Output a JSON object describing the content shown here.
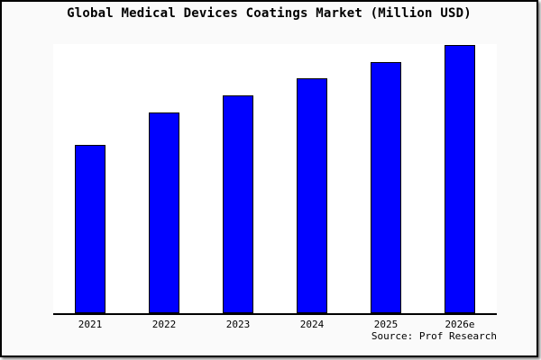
{
  "window": {
    "title": "Global Medical Devices Coatings Market (Million USD)"
  },
  "chart_data": {
    "type": "bar",
    "title": "Global Medical Devices Coatings Market (Million USD)",
    "categories": [
      "2021",
      "2022",
      "2023",
      "2024",
      "2025",
      "2026e"
    ],
    "values": [
      62.7,
      75.0,
      81.3,
      87.7,
      93.7,
      100.0
    ],
    "unit": "relative index (no y-axis scale shown; tallest bar = 100)",
    "xlabel": "",
    "ylabel": "",
    "ylim": [
      0,
      100.5
    ],
    "grid": false,
    "legend": false,
    "source": "Source: Prof Research"
  },
  "colors": {
    "bar_fill": "#0000ff",
    "bar_border": "#000000",
    "axis": "#000000",
    "background": "#fafafa",
    "plot_background": "#ffffff",
    "frame_border": "#000000",
    "text": "#000000"
  }
}
